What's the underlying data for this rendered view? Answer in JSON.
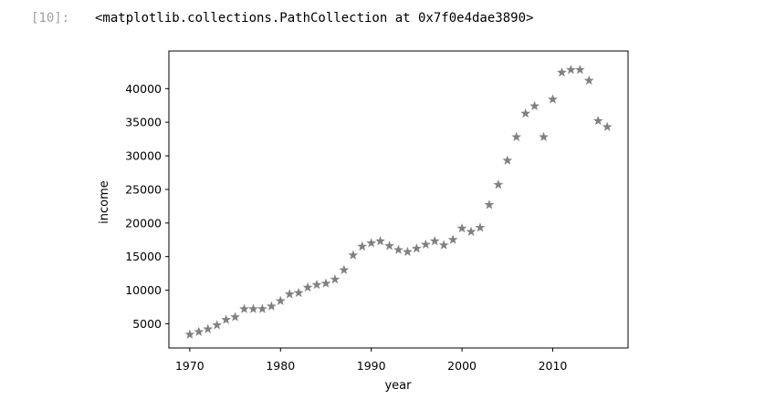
{
  "cell": {
    "prompt": "[10]:",
    "output": "<matplotlib.collections.PathCollection at 0x7f0e4dae3890>"
  },
  "chart_data": {
    "type": "scatter",
    "title": "",
    "xlabel": "year",
    "ylabel": "income",
    "xlim": [
      1967.7,
      2018.3
    ],
    "ylim": [
      1400,
      45600
    ],
    "xticks": [
      1970,
      1980,
      1990,
      2000,
      2010
    ],
    "yticks": [
      5000,
      10000,
      15000,
      20000,
      25000,
      30000,
      35000,
      40000
    ],
    "marker": "star",
    "marker_color": "#808080",
    "grid": false,
    "x": [
      1970,
      1971,
      1972,
      1973,
      1974,
      1975,
      1976,
      1977,
      1978,
      1979,
      1980,
      1981,
      1982,
      1983,
      1984,
      1985,
      1986,
      1987,
      1988,
      1989,
      1990,
      1991,
      1992,
      1993,
      1994,
      1995,
      1996,
      1997,
      1998,
      1999,
      2000,
      2001,
      2002,
      2003,
      2004,
      2005,
      2006,
      2007,
      2008,
      2009,
      2010,
      2011,
      2012,
      2013,
      2014,
      2015,
      2016
    ],
    "y": [
      3400,
      3800,
      4200,
      4800,
      5600,
      6000,
      7200,
      7200,
      7200,
      7600,
      8400,
      9400,
      9600,
      10400,
      10800,
      11000,
      11600,
      13000,
      15200,
      16500,
      17000,
      17300,
      16600,
      16000,
      15700,
      16200,
      16800,
      17300,
      16700,
      17500,
      19200,
      18700,
      19300,
      22700,
      25700,
      29300,
      32800,
      36300,
      37400,
      32800,
      38400,
      42400,
      42800,
      42800,
      41200,
      35200,
      34300
    ]
  }
}
